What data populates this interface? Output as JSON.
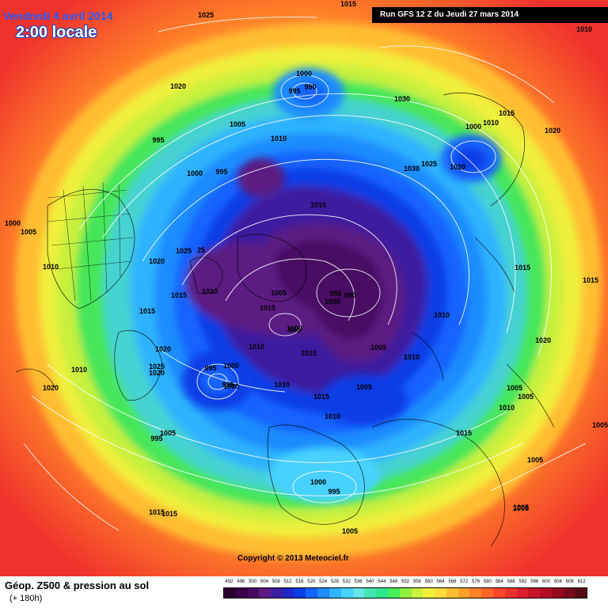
{
  "title": "Vendredi 4 avril 2014",
  "time_label": "2:00 locale",
  "run_info": "Run GFS 12 Z du Jeudi 27 mars 2014",
  "copyright": "Copyright © 2013 Meteociel.fr",
  "product": "Géop. Z500 & pression au sol",
  "lead_time": "(+ 180h)",
  "scale": {
    "values": [
      492,
      496,
      500,
      504,
      508,
      512,
      516,
      520,
      524,
      528,
      532,
      536,
      540,
      544,
      548,
      552,
      556,
      560,
      564,
      568,
      572,
      576,
      580,
      584,
      588,
      592,
      596,
      600,
      604,
      608,
      612
    ],
    "colors": [
      "#2a0030",
      "#3a0048",
      "#4a0a64",
      "#5c1a82",
      "#3c1ea0",
      "#1e28c8",
      "#0a3ee6",
      "#1464ff",
      "#1e8cff",
      "#2eb4ff",
      "#46d2ff",
      "#64e6e6",
      "#46e6b4",
      "#2ee68c",
      "#46f05a",
      "#8cf03c",
      "#c8f03c",
      "#f0f03c",
      "#ffdc3c",
      "#ffbe32",
      "#ffa028",
      "#ff8228",
      "#ff6428",
      "#ff4628",
      "#f0322d",
      "#dc1e2d",
      "#c81428",
      "#b40a23",
      "#960a1e",
      "#780a1e",
      "#5a0a14"
    ]
  },
  "map_labels": [
    {
      "text": "1025"
    },
    {
      "text": "1015"
    },
    {
      "text": "1010"
    },
    {
      "text": "1020"
    },
    {
      "text": "1000"
    },
    {
      "text": "990"
    },
    {
      "text": "995"
    },
    {
      "text": "1005"
    },
    {
      "text": "1030"
    },
    {
      "text": "1000"
    },
    {
      "text": "1010"
    },
    {
      "text": "1015"
    },
    {
      "text": "1020"
    },
    {
      "text": "995"
    },
    {
      "text": "1010"
    },
    {
      "text": "1000"
    },
    {
      "text": "995"
    },
    {
      "text": "1030"
    },
    {
      "text": "1025"
    },
    {
      "text": "1020"
    },
    {
      "text": "1015"
    },
    {
      "text": "1000"
    },
    {
      "text": "1005"
    },
    {
      "text": "1010"
    },
    {
      "text": "1020"
    },
    {
      "text": "1025"
    },
    {
      "text": "25"
    },
    {
      "text": "1015"
    },
    {
      "text": "1015"
    },
    {
      "text": "1005"
    },
    {
      "text": "995"
    },
    {
      "text": "990"
    },
    {
      "text": "1000"
    },
    {
      "text": "1015"
    },
    {
      "text": "1010"
    },
    {
      "text": "1015"
    },
    {
      "text": "1010"
    },
    {
      "text": "1015"
    },
    {
      "text": "1020"
    },
    {
      "text": "1000"
    },
    {
      "text": "995"
    },
    {
      "text": "1010"
    },
    {
      "text": "1020"
    },
    {
      "text": "1010"
    },
    {
      "text": "1015"
    },
    {
      "text": "1005"
    },
    {
      "text": "1000"
    },
    {
      "text": "1010"
    },
    {
      "text": "1020"
    },
    {
      "text": "1025"
    },
    {
      "text": "995"
    },
    {
      "text": "1000"
    },
    {
      "text": "995"
    },
    {
      "text": "1010"
    },
    {
      "text": "1015"
    },
    {
      "text": "1005"
    },
    {
      "text": "1005"
    },
    {
      "text": "1010"
    },
    {
      "text": "1005"
    },
    {
      "text": "1020"
    },
    {
      "text": "1010"
    },
    {
      "text": "1005"
    },
    {
      "text": "1005"
    },
    {
      "text": "995"
    },
    {
      "text": "1015"
    },
    {
      "text": "1015"
    },
    {
      "text": "1005"
    },
    {
      "text": "1005"
    },
    {
      "text": "1000"
    },
    {
      "text": "995"
    },
    {
      "text": "1015"
    },
    {
      "text": "1005"
    },
    {
      "text": "1005"
    }
  ]
}
